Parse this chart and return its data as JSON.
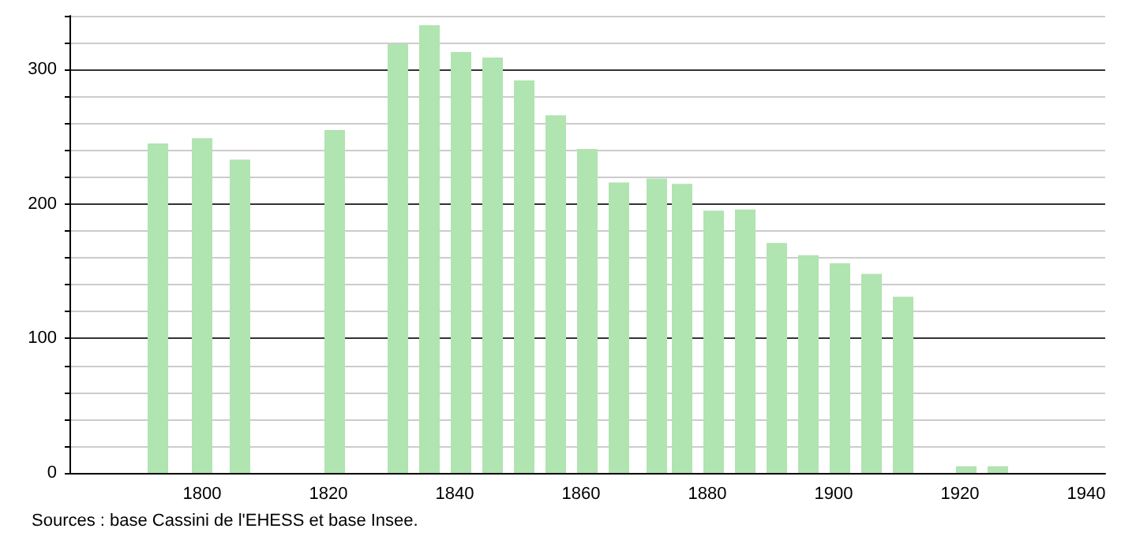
{
  "chart_data": {
    "type": "bar",
    "x": [
      1793,
      1800,
      1806,
      1821,
      1831,
      1836,
      1841,
      1846,
      1851,
      1856,
      1861,
      1866,
      1872,
      1876,
      1881,
      1886,
      1891,
      1896,
      1901,
      1906,
      1911,
      1921,
      1926
    ],
    "values": [
      245,
      249,
      233,
      255,
      319,
      333,
      313,
      309,
      292,
      266,
      241,
      216,
      219,
      215,
      195,
      196,
      171,
      162,
      156,
      148,
      131,
      5,
      5
    ],
    "color": "#b0e4b0",
    "xlim": [
      1779,
      1943
    ],
    "xticks": [
      1800,
      1820,
      1840,
      1860,
      1880,
      1900,
      1920,
      1940
    ],
    "ylim": [
      0,
      340
    ],
    "yticks": [
      0,
      {
        "value": 20,
        "label": null
      },
      {
        "value": 40,
        "label": null
      },
      {
        "value": 60,
        "label": null
      },
      {
        "value": 80,
        "label": null
      },
      100,
      {
        "value": 120,
        "label": null
      },
      {
        "value": 140,
        "label": null
      },
      {
        "value": 160,
        "label": null
      },
      {
        "value": 180,
        "label": null
      },
      200,
      {
        "value": 220,
        "label": null
      },
      {
        "value": 240,
        "label": null
      },
      {
        "value": 260,
        "label": null
      },
      {
        "value": 280,
        "label": null
      },
      300,
      {
        "value": 320,
        "label": null
      },
      {
        "value": 340,
        "label": null
      }
    ],
    "grid": "y",
    "annotations": [
      "Sources : base Cassini de l'EHESS et base Insee."
    ]
  }
}
